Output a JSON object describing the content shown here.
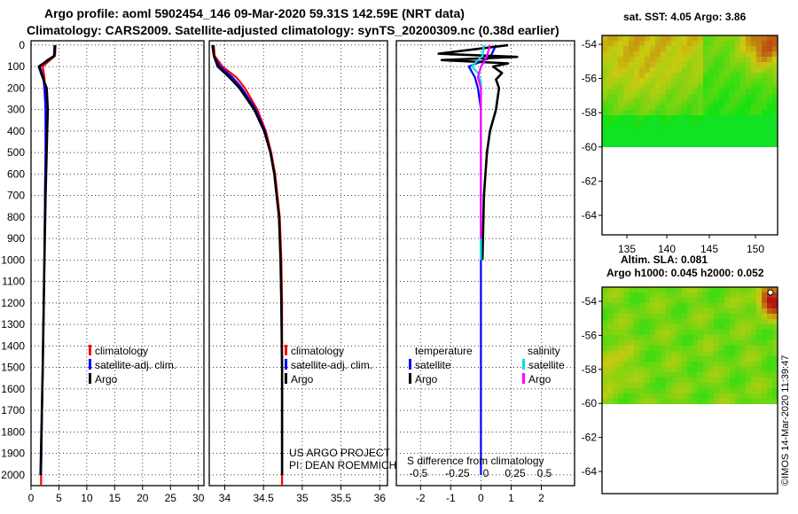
{
  "title_line1": "Argo profile: aoml 5902454_146 09-Mar-2020 59.31S 142.59E (NRT data)",
  "title_line2": "Climatology: CARS2009. Satellite-adjusted climatology: synTS_20200309.nc (0.38d earlier)",
  "colors": {
    "climatology": "#ff0000",
    "satellite": "#0000ff",
    "argo": "#000000",
    "sal_sat": "#00e0e0",
    "sal_argo": "#ff00ff"
  },
  "depth_ticks": [
    "0",
    "100",
    "200",
    "300",
    "400",
    "500",
    "600",
    "700",
    "800",
    "900",
    "1000",
    "1100",
    "1200",
    "1300",
    "1400",
    "1500",
    "1600",
    "1700",
    "1800",
    "1900",
    "2000"
  ],
  "chart_data": [
    {
      "id": "temperature",
      "type": "line",
      "xlim": [
        0,
        31
      ],
      "ylim": [
        2050,
        -20
      ],
      "xticks": [
        "0",
        "5",
        "10",
        "15",
        "20",
        "25",
        "30"
      ],
      "legend": [
        "climatology",
        "satellite-adj. clim.",
        "Argo"
      ],
      "series": [
        {
          "name": "climatology",
          "depth": [
            0,
            50,
            100,
            150,
            200,
            300,
            400,
            500,
            700,
            1000,
            1500,
            2000,
            2050
          ],
          "values": [
            4.4,
            4.3,
            2.1,
            2.4,
            2.5,
            2.6,
            2.6,
            2.6,
            2.5,
            2.4,
            2.1,
            1.8,
            1.8
          ]
        },
        {
          "name": "satellite-adj. clim.",
          "depth": [
            0,
            50,
            70,
            100,
            150,
            200,
            300,
            400,
            500,
            700,
            1000,
            1500,
            2000
          ],
          "values": [
            4.2,
            4.1,
            2.9,
            1.6,
            2.2,
            2.4,
            2.6,
            2.6,
            2.6,
            2.5,
            2.4,
            2.1,
            1.8
          ]
        },
        {
          "name": "Argo",
          "depth": [
            0,
            50,
            80,
            100,
            130,
            200,
            300,
            400,
            500,
            700,
            1000,
            1500,
            2000
          ],
          "values": [
            4.3,
            4.2,
            2.5,
            1.4,
            1.8,
            2.8,
            3.0,
            2.9,
            2.8,
            2.6,
            2.4,
            2.1,
            1.7
          ]
        }
      ]
    },
    {
      "id": "salinity",
      "type": "line",
      "xlim": [
        33.8,
        36.1
      ],
      "ylim": [
        2050,
        -20
      ],
      "xticks": [
        "34",
        "34.5",
        "35",
        "35.5",
        "36"
      ],
      "legend": [
        "climatology",
        "satellite-adj. clim.",
        "Argo"
      ],
      "annotations": [
        "US ARGO PROJECT",
        "PI: DEAN ROEMMICH"
      ],
      "series": [
        {
          "name": "climatology",
          "depth": [
            0,
            50,
            100,
            150,
            200,
            300,
            400,
            500,
            600,
            700,
            800,
            1000,
            1200,
            1500,
            2000,
            2050
          ],
          "values": [
            33.86,
            33.87,
            33.97,
            34.15,
            34.26,
            34.42,
            34.53,
            34.6,
            34.65,
            34.68,
            34.71,
            34.73,
            34.74,
            34.74,
            34.74,
            34.74
          ]
        },
        {
          "name": "satellite-adj. clim.",
          "depth": [
            0,
            50,
            100,
            150,
            200,
            300,
            400,
            500,
            600,
            700,
            800,
            1000,
            1200,
            1500,
            2000
          ],
          "values": [
            33.85,
            33.86,
            33.94,
            34.1,
            34.22,
            34.4,
            34.52,
            34.59,
            34.64,
            34.67,
            34.7,
            34.72,
            34.73,
            34.74,
            34.74
          ]
        },
        {
          "name": "Argo",
          "depth": [
            0,
            50,
            100,
            150,
            200,
            300,
            400,
            500,
            600,
            700,
            800,
            1000,
            1200,
            1500,
            2000
          ],
          "values": [
            33.84,
            33.86,
            33.91,
            34.06,
            34.19,
            34.38,
            34.51,
            34.59,
            34.64,
            34.67,
            34.7,
            34.72,
            34.73,
            34.74,
            34.74
          ]
        }
      ]
    },
    {
      "id": "difference",
      "type": "line",
      "xlim": [
        -2.8,
        3.1
      ],
      "ylim": [
        2050,
        -20
      ],
      "xticks": [
        "-2",
        "-1",
        "0",
        "1",
        "2"
      ],
      "xticks_s": [
        "-0.5",
        "-0.25",
        "0",
        "0.25",
        "0.5"
      ],
      "xlabel": "S difference from climatology",
      "legend_headers": [
        "temperature",
        "salinity"
      ],
      "legend_t": [
        "satellite",
        "Argo"
      ],
      "legend_s": [
        "satellite",
        "Argo"
      ],
      "series": [
        {
          "name": "T satellite",
          "depth": [
            0,
            30,
            60,
            100,
            150,
            200,
            300,
            500,
            800,
            1000,
            1300,
            2000
          ],
          "values": [
            0.5,
            0.4,
            0.3,
            -0.4,
            -0.2,
            -0.1,
            0.0,
            0.0,
            0.0,
            0.0,
            0.0,
            0.0
          ]
        },
        {
          "name": "T Argo",
          "depth": [
            0,
            40,
            55,
            70,
            85,
            100,
            130,
            160,
            200,
            300,
            400,
            500,
            700,
            1000
          ],
          "values": [
            0.9,
            -1.4,
            1.2,
            -1.3,
            0.9,
            0.4,
            0.7,
            0.5,
            0.6,
            0.5,
            0.3,
            0.2,
            0.1,
            0.05
          ]
        },
        {
          "name": "S satellite",
          "depth": [
            0,
            50,
            70,
            100,
            130,
            170,
            200,
            300,
            500,
            800,
            1000
          ],
          "values": [
            0.1,
            0.05,
            -0.1,
            -0.3,
            -0.1,
            0.0,
            0.0,
            0.0,
            0.0,
            0.0,
            0.0
          ]
        },
        {
          "name": "S Argo",
          "depth": [
            0,
            50,
            80,
            100,
            150,
            200,
            300,
            500,
            700,
            900
          ],
          "values": [
            0.3,
            0.2,
            0.1,
            0.0,
            -0.1,
            0.0,
            0.0,
            0.0,
            0.0,
            0.0
          ]
        }
      ]
    },
    {
      "id": "sst-map",
      "type": "heatmap",
      "title": "sat. SST: 4.05 Argo: 3.86",
      "yticks": [
        "-54",
        "-56",
        "-58",
        "-60",
        "-62",
        "-64"
      ],
      "xticks": [
        "135",
        "140",
        "145",
        "150"
      ]
    },
    {
      "id": "sla-map",
      "type": "heatmap",
      "title1": "Altim. SLA: 0.081",
      "title2": "Argo h1000: 0.045 h2000: 0.052",
      "yticks": [
        "-54",
        "-56",
        "-58",
        "-60",
        "-62",
        "-64"
      ]
    }
  ],
  "footer_stamp": "©IMOS 14-Mar-2020 11:39:47"
}
